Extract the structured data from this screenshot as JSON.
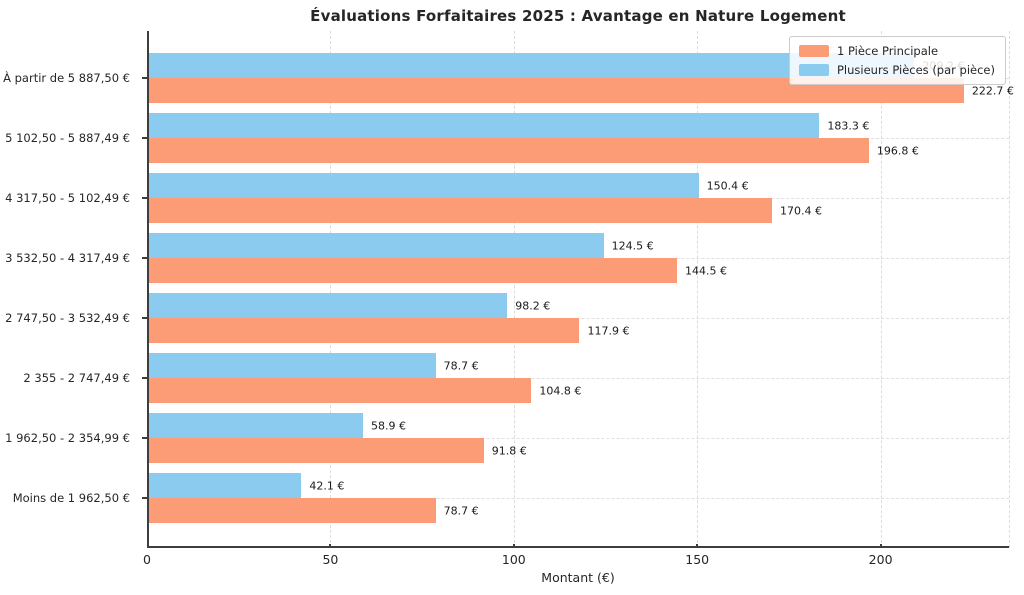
{
  "chart_data": {
    "type": "bar",
    "orientation": "horizontal",
    "title": "Évaluations Forfaitaires 2025 : Avantage en Nature Logement",
    "xlabel": "Montant (€)",
    "ylabel": "",
    "xlim": [
      0,
      235
    ],
    "xticks": [
      0,
      50,
      100,
      150,
      200
    ],
    "grid": true,
    "legend_position": "upper-right",
    "value_suffix": " €",
    "categories": [
      "À partir de 5 887,50 €",
      "5 102,50 - 5 887,49 €",
      "4 317,50 - 5 102,49 €",
      "3 532,50 - 4 317,49 €",
      "2 747,50 - 3 532,49 €",
      "2 355 - 2 747,49 €",
      "1 962,50 - 2 354,99 €",
      "Moins de 1 962,50 €"
    ],
    "series": [
      {
        "name": "1 Pièce Principale",
        "color": "#FB9C77",
        "values": [
          222.7,
          196.8,
          170.4,
          144.5,
          117.9,
          104.8,
          91.8,
          78.7
        ]
      },
      {
        "name": "Plusieurs Pièces (par pièce)",
        "color": "#8BCBF0",
        "values": [
          209.2,
          183.3,
          150.4,
          124.5,
          98.2,
          78.7,
          58.9,
          42.1
        ]
      }
    ]
  },
  "colors": {
    "spine": "#3d3d3d",
    "grid": "#dcdcdc",
    "text": "#262626",
    "bar_label_text": "#1a1a1a",
    "legend_border": "#cccccc",
    "background": "#ffffff"
  }
}
